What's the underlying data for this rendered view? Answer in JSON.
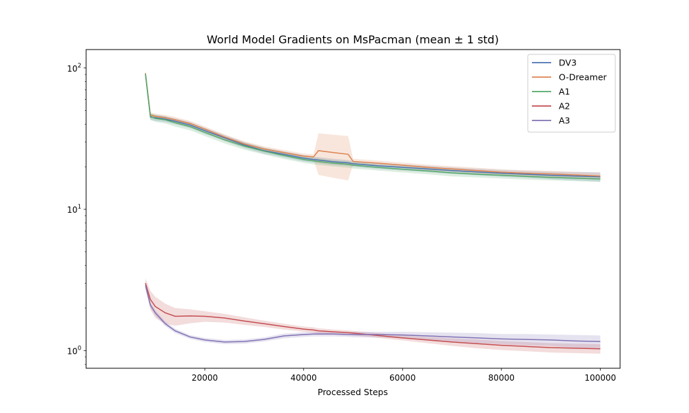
{
  "chart_data": {
    "type": "line",
    "title": "World Model Gradients on MsPacman (mean ± 1 std)",
    "xlabel": "Processed Steps",
    "ylabel": "",
    "xlim": [
      -4000,
      104000
    ],
    "ylim": [
      0.75,
      135
    ],
    "yscale": "log",
    "grid": false,
    "legend_position": "top-right",
    "xticks": [
      20000,
      40000,
      60000,
      80000,
      100000
    ],
    "xtick_labels": [
      "20000",
      "40000",
      "60000",
      "80000",
      "100000"
    ],
    "yticks": [
      1,
      10,
      100
    ],
    "ytick_labels_base": "10",
    "ytick_labels_exp": [
      "0",
      "1",
      "2"
    ],
    "x": [
      8000,
      9000,
      10000,
      12000,
      14000,
      17000,
      20000,
      24000,
      28000,
      32000,
      36000,
      40000,
      42000,
      43000,
      46000,
      49000,
      50000,
      55000,
      60000,
      65000,
      70000,
      75000,
      80000,
      85000,
      90000,
      95000,
      100000
    ],
    "series": [
      {
        "name": "DV3",
        "color": "#4c72b0",
        "values": [
          90,
          45,
          44.5,
          43.5,
          42,
          39.5,
          36,
          32,
          28.5,
          26,
          24.5,
          23,
          22.5,
          22.3,
          21.7,
          21.3,
          21,
          20.3,
          19.8,
          19.3,
          18.8,
          18.4,
          18,
          17.7,
          17.4,
          17.2,
          17
        ],
        "std": [
          4,
          2.2,
          2.2,
          2.1,
          2,
          2,
          1.8,
          1.6,
          1.4,
          1.3,
          1.2,
          1.2,
          1.1,
          1.1,
          1.1,
          1,
          1,
          1,
          1,
          1,
          1,
          1,
          1,
          1,
          1.1,
          1.2,
          1.3
        ]
      },
      {
        "name": "O-Dreamer",
        "color": "#dd8452",
        "values": [
          92,
          46.5,
          45.5,
          44.5,
          43,
          40.5,
          37,
          32.5,
          29,
          26.7,
          25.2,
          23.8,
          23.5,
          26,
          25.2,
          24.5,
          21.8,
          21.2,
          20.5,
          19.8,
          19.3,
          18.8,
          18.3,
          18,
          17.8,
          17.5,
          17.2
        ],
        "std": [
          4,
          2,
          2,
          2,
          2,
          1.8,
          1.6,
          1.4,
          1.3,
          1.2,
          1.1,
          1,
          1,
          8.5,
          8.5,
          8.5,
          1,
          0.9,
          0.9,
          0.9,
          0.9,
          0.9,
          0.9,
          0.9,
          0.9,
          0.9,
          0.9
        ]
      },
      {
        "name": "A1",
        "color": "#55a868",
        "values": [
          91,
          45.5,
          44,
          43,
          41,
          38.5,
          35,
          31,
          28,
          25.8,
          24,
          22.5,
          22,
          21.8,
          21.2,
          20.8,
          20.5,
          19.8,
          19.2,
          18.7,
          18.1,
          17.7,
          17.4,
          17.1,
          16.8,
          16.6,
          16.4
        ],
        "std": [
          4,
          2.5,
          2.5,
          2.5,
          2.5,
          2.3,
          2,
          1.8,
          1.6,
          1.4,
          1.3,
          1.2,
          1.2,
          1.2,
          1.1,
          1.1,
          1.1,
          1,
          1,
          1,
          1,
          0.9,
          0.9,
          0.9,
          0.8,
          0.8,
          0.8
        ]
      },
      {
        "name": "A2",
        "color": "#c44e52",
        "values": [
          3,
          2.3,
          2.05,
          1.85,
          1.75,
          1.76,
          1.75,
          1.7,
          1.62,
          1.55,
          1.48,
          1.42,
          1.4,
          1.38,
          1.36,
          1.34,
          1.33,
          1.28,
          1.23,
          1.19,
          1.15,
          1.12,
          1.09,
          1.07,
          1.05,
          1.04,
          1.03
        ],
        "std": [
          0.25,
          0.35,
          0.35,
          0.3,
          0.25,
          0.2,
          0.15,
          0.12,
          0.1,
          0.08,
          0.07,
          0.06,
          0.06,
          0.06,
          0.05,
          0.05,
          0.05,
          0.05,
          0.05,
          0.06,
          0.07,
          0.08,
          0.08,
          0.08,
          0.08,
          0.08,
          0.08
        ]
      },
      {
        "name": "A3",
        "color": "#8172b3",
        "values": [
          2.9,
          2.1,
          1.85,
          1.55,
          1.38,
          1.25,
          1.19,
          1.15,
          1.16,
          1.2,
          1.27,
          1.3,
          1.31,
          1.31,
          1.31,
          1.3,
          1.3,
          1.3,
          1.29,
          1.27,
          1.25,
          1.23,
          1.21,
          1.2,
          1.19,
          1.17,
          1.16
        ],
        "std": [
          0.15,
          0.1,
          0.08,
          0.06,
          0.05,
          0.04,
          0.04,
          0.04,
          0.04,
          0.04,
          0.05,
          0.05,
          0.05,
          0.05,
          0.05,
          0.05,
          0.06,
          0.06,
          0.07,
          0.08,
          0.09,
          0.1,
          0.1,
          0.11,
          0.11,
          0.12,
          0.12
        ]
      }
    ]
  }
}
